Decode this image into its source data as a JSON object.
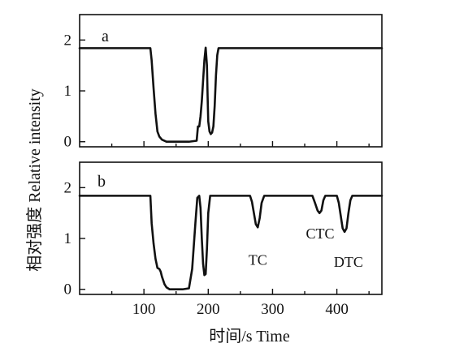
{
  "chart_data": [
    {
      "type": "line",
      "panel_label": "a",
      "x_range": [
        0,
        470
      ],
      "y_range": [
        -0.1,
        2.5
      ],
      "yticks": [
        0,
        1,
        2
      ],
      "xticks": [
        100,
        200,
        300,
        400
      ],
      "show_xtick_labels": false,
      "series": [
        {
          "x": [
            0,
            110,
            112,
            115,
            118,
            121,
            124,
            128,
            135,
            150,
            170,
            182,
            184,
            186,
            188,
            190,
            192,
            194,
            196,
            198,
            199,
            200,
            202,
            204,
            206,
            208,
            210,
            212,
            214,
            216,
            470
          ],
          "y": [
            1.84,
            1.84,
            1.6,
            1.05,
            0.55,
            0.2,
            0.1,
            0.04,
            0.0,
            0.0,
            0.0,
            0.02,
            0.3,
            0.3,
            0.5,
            0.8,
            1.2,
            1.6,
            1.85,
            1.5,
            0.9,
            0.4,
            0.2,
            0.15,
            0.18,
            0.3,
            0.7,
            1.3,
            1.7,
            1.84,
            1.84
          ]
        }
      ]
    },
    {
      "type": "line",
      "panel_label": "b",
      "x_range": [
        0,
        470
      ],
      "y_range": [
        -0.1,
        2.5
      ],
      "yticks": [
        0,
        1,
        2
      ],
      "xticks": [
        100,
        200,
        300,
        400
      ],
      "xtick_labels": [
        "100",
        "200",
        "300",
        "400"
      ],
      "xlabel": "时间/s Time",
      "series": [
        {
          "x": [
            0,
            110,
            112,
            115,
            118,
            121,
            124,
            126,
            128,
            132,
            135,
            140,
            160,
            170,
            175,
            180,
            183,
            186,
            188,
            190,
            192,
            194,
            196,
            198,
            200,
            203,
            205,
            207,
            215,
            265,
            268,
            271,
            274,
            277,
            280,
            283,
            287,
            362,
            366,
            370,
            373,
            376,
            379,
            382,
            386,
            400,
            403,
            406,
            409,
            412,
            415,
            418,
            421,
            424,
            470
          ],
          "y": [
            1.84,
            1.84,
            1.3,
            0.9,
            0.6,
            0.42,
            0.4,
            0.35,
            0.25,
            0.1,
            0.04,
            0.0,
            0.0,
            0.02,
            0.4,
            1.3,
            1.8,
            1.84,
            1.6,
            1.0,
            0.5,
            0.28,
            0.3,
            0.8,
            1.5,
            1.84,
            1.84,
            1.84,
            1.84,
            1.84,
            1.72,
            1.5,
            1.28,
            1.22,
            1.4,
            1.7,
            1.84,
            1.84,
            1.7,
            1.55,
            1.5,
            1.55,
            1.75,
            1.84,
            1.84,
            1.84,
            1.7,
            1.45,
            1.2,
            1.13,
            1.2,
            1.5,
            1.75,
            1.84,
            1.84
          ]
        }
      ],
      "annotations": [
        {
          "text": "TC",
          "x": 277,
          "y": 0.48
        },
        {
          "text": "CTC",
          "x": 374,
          "y": 1.0
        },
        {
          "text": "DTC",
          "x": 418,
          "y": 0.44
        }
      ]
    }
  ],
  "ylabel": "相对强度 Relative intensity"
}
